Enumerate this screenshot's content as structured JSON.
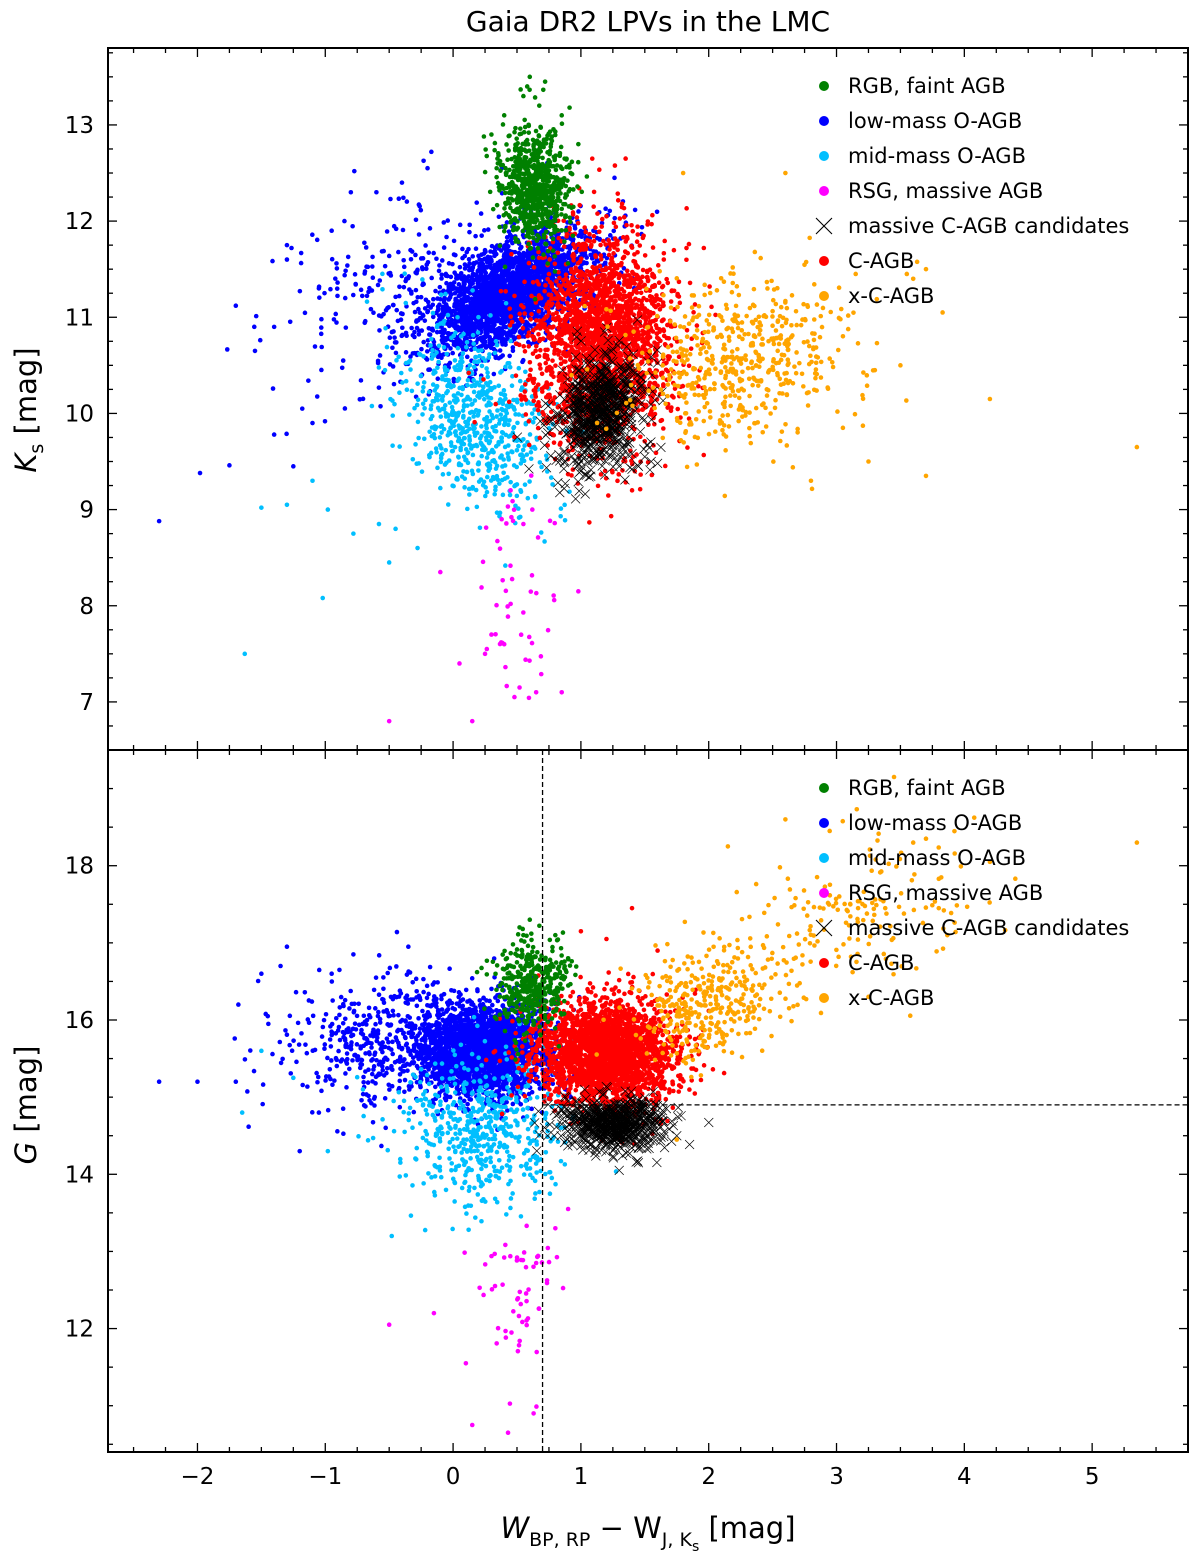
{
  "chart_data": {
    "type": "scatter",
    "title": "Gaia DR2 LPVs in the LMC",
    "xlabel": {
      "main": "W",
      "sub1": "BP, RP",
      "op": " − W",
      "sub2": "J, K",
      "sub2_sub": "s",
      "unit": " [mag]"
    },
    "xlim": [
      -2.7,
      5.75
    ],
    "x_ticks": [
      -2,
      -1,
      0,
      1,
      2,
      3,
      4,
      5
    ],
    "x_tick_labels": [
      "−2",
      "−1",
      "0",
      "1",
      "2",
      "3",
      "4",
      "5"
    ],
    "legend_position": "top-right",
    "legend_entries": [
      {
        "label": "RGB, faint AGB",
        "color": "#008000",
        "marker": "dot"
      },
      {
        "label": "low-mass O-AGB",
        "color": "#0000ff",
        "marker": "dot"
      },
      {
        "label": "mid-mass O-AGB",
        "color": "#00bfff",
        "marker": "dot"
      },
      {
        "label": "RSG, massive AGB",
        "color": "#ff00ff",
        "marker": "dot"
      },
      {
        "label": "massive C-AGB candidates",
        "color": "#000000",
        "marker": "x"
      },
      {
        "label": "C-AGB",
        "color": "#ff0000",
        "marker": "dot"
      },
      {
        "label": "x-C-AGB",
        "color": "#ffa500",
        "marker": "dot"
      }
    ],
    "panels": [
      {
        "ylabel": {
          "main": "K",
          "sub": "s",
          "unit": " [mag]"
        },
        "ylim": [
          13.8,
          6.5
        ],
        "y_inverted": true,
        "y_ticks": [
          7,
          8,
          9,
          10,
          11,
          12,
          13
        ],
        "y_tick_labels": [
          "7",
          "8",
          "9",
          "10",
          "11",
          "12",
          "13"
        ],
        "series": [
          {
            "name": "low-mass O-AGB",
            "color": "#0000ff",
            "marker": "dot",
            "clusters": [
              {
                "n": 2600,
                "cx": 0.45,
                "cy": 11.25,
                "sx": 0.32,
                "sy": 0.32,
                "corr": 0.55
              },
              {
                "n": 220,
                "cx": -0.45,
                "cy": 11.3,
                "sx": 0.45,
                "sy": 0.5,
                "corr": 0.2
              }
            ],
            "points": [
              [
                -2.3,
                8.88
              ],
              [
                -1.98,
                9.38
              ],
              [
                -1.75,
                9.46
              ],
              [
                -1.7,
                11.12
              ],
              [
                -1.4,
                9.78
              ],
              [
                -1.25,
                9.45
              ],
              [
                -1.18,
                10.05
              ],
              [
                -1.1,
                9.9
              ],
              [
                -1.55,
                10.65
              ],
              [
                -1.4,
                10.9
              ],
              [
                -1.3,
                11.6
              ],
              [
                -1.3,
                11.75
              ],
              [
                -1.05,
                11.3
              ],
              [
                -0.95,
                11.9
              ],
              [
                -0.85,
                12.0
              ],
              [
                -0.8,
                12.3
              ],
              [
                -0.6,
                12.3
              ],
              [
                -0.4,
                12.4
              ],
              [
                -0.2,
                12.55
              ],
              [
                -0.17,
                12.72
              ]
            ]
          },
          {
            "name": "mid-mass O-AGB",
            "color": "#00bfff",
            "marker": "dot",
            "clusters": [
              {
                "n": 650,
                "cx": 0.15,
                "cy": 9.95,
                "sx": 0.28,
                "sy": 0.5,
                "corr": -0.35
              }
            ],
            "points": [
              [
                -1.63,
                7.5
              ],
              [
                -1.02,
                8.08
              ],
              [
                -1.5,
                9.02
              ],
              [
                -1.3,
                9.05
              ],
              [
                -1.1,
                9.3
              ],
              [
                -0.98,
                9.0
              ],
              [
                -0.78,
                8.75
              ],
              [
                -0.58,
                8.85
              ],
              [
                -0.5,
                8.45
              ],
              [
                -0.45,
                8.8
              ]
            ]
          },
          {
            "name": "RSG, massive AGB",
            "color": "#ff00ff",
            "marker": "dot",
            "clusters": [
              {
                "n": 45,
                "cx": 0.5,
                "cy": 8.3,
                "sx": 0.14,
                "sy": 0.6,
                "corr": 0.0
              }
            ],
            "points": [
              [
                -0.5,
                6.8
              ],
              [
                0.15,
                6.8
              ],
              [
                0.05,
                7.4
              ],
              [
                0.48,
                7.05
              ],
              [
                0.52,
                7.15
              ],
              [
                0.65,
                7.1
              ],
              [
                0.85,
                7.1
              ],
              [
                0.98,
                8.15
              ],
              [
                0.4,
                7.6
              ],
              [
                0.25,
                7.5
              ],
              [
                0.3,
                7.7
              ],
              [
                0.38,
                8.9
              ],
              [
                0.45,
                9.2
              ],
              [
                0.55,
                8.85
              ],
              [
                -0.1,
                8.35
              ],
              [
                0.62,
                9.0
              ]
            ]
          },
          {
            "name": "C-AGB",
            "color": "#ff0000",
            "marker": "dot",
            "clusters": [
              {
                "n": 2300,
                "cx": 1.15,
                "cy": 10.75,
                "sx": 0.28,
                "sy": 0.55,
                "corr": 0.0
              }
            ],
            "points": [
              [
                1.35,
                12.65
              ],
              [
                1.2,
                12.05
              ],
              [
                1.1,
                12.15
              ],
              [
                1.05,
                11.8
              ],
              [
                0.8,
                12.2
              ]
            ]
          },
          {
            "name": "massive C-AGB candidates",
            "color": "#000000",
            "marker": "x",
            "clusters": [
              {
                "n": 700,
                "cx": 1.15,
                "cy": 10.0,
                "sx": 0.17,
                "sy": 0.3,
                "corr": 0.2
              }
            ],
            "points": [
              [
                1.45,
                9.45
              ],
              [
                1.55,
                9.5
              ],
              [
                1.4,
                9.42
              ],
              [
                1.6,
                9.48
              ],
              [
                1.3,
                9.45
              ],
              [
                1.0,
                9.5
              ],
              [
                1.5,
                9.55
              ]
            ]
          },
          {
            "name": "x-C-AGB",
            "color": "#ffa500",
            "marker": "dot",
            "clusters": [
              {
                "n": 550,
                "cx": 2.25,
                "cy": 10.55,
                "sx": 0.45,
                "sy": 0.45,
                "corr": 0.15
              }
            ],
            "points": [
              [
                2.8,
                9.3
              ],
              [
                3.05,
                9.85
              ],
              [
                3.25,
                9.5
              ],
              [
                3.5,
                10.5
              ],
              [
                3.7,
                9.35
              ],
              [
                3.83,
                11.05
              ],
              [
                4.2,
                10.15
              ],
              [
                5.35,
                9.65
              ],
              [
                3.6,
                11.4
              ],
              [
                3.7,
                11.5
              ],
              [
                3.55,
                11.45
              ],
              [
                1.8,
                12.5
              ],
              [
                2.6,
                12.5
              ],
              [
                3.15,
                11.45
              ],
              [
                3.3,
                10.45
              ]
            ]
          },
          {
            "name": "RGB, faint AGB",
            "color": "#008000",
            "marker": "dot",
            "clusters": [
              {
                "n": 750,
                "cx": 0.63,
                "cy": 12.35,
                "sx": 0.13,
                "sy": 0.3,
                "corr": 0.0
              }
            ],
            "points": [
              [
                0.58,
                13.4
              ],
              [
                0.6,
                13.5
              ],
              [
                0.72,
                13.45
              ],
              [
                0.55,
                13.3
              ],
              [
                0.85,
                13.1
              ],
              [
                0.3,
                12.9
              ],
              [
                0.98,
                12.8
              ],
              [
                0.92,
                12.5
              ],
              [
                0.35,
                12.6
              ],
              [
                0.4,
                13.1
              ]
            ]
          }
        ]
      },
      {
        "ylabel": {
          "main": "G",
          "sub": "",
          "unit": " [mag]"
        },
        "ylim": [
          19.5,
          10.4
        ],
        "y_inverted": true,
        "y_ticks": [
          12,
          14,
          16,
          18
        ],
        "y_tick_labels": [
          "12",
          "14",
          "16",
          "18"
        ],
        "reference_lines": [
          {
            "orientation": "vertical",
            "x": 0.7,
            "style": "dashed"
          },
          {
            "orientation": "horizontal",
            "y": 14.9,
            "x_from": 0.7,
            "style": "dashed"
          }
        ],
        "series": [
          {
            "name": "low-mass O-AGB",
            "color": "#0000ff",
            "marker": "dot",
            "clusters": [
              {
                "n": 2400,
                "cx": 0.25,
                "cy": 15.6,
                "sx": 0.27,
                "sy": 0.3,
                "corr": 0.0
              },
              {
                "n": 450,
                "cx": -0.55,
                "cy": 15.75,
                "sx": 0.4,
                "sy": 0.42,
                "corr": 0.1
              }
            ],
            "points": [
              [
                -2.3,
                15.2
              ],
              [
                -2.0,
                15.2
              ],
              [
                -1.7,
                15.2
              ],
              [
                -1.68,
                16.2
              ],
              [
                -1.45,
                16.05
              ],
              [
                -1.3,
                16.95
              ],
              [
                -1.2,
                14.3
              ],
              [
                -1.05,
                14.8
              ],
              [
                -0.95,
                16.6
              ],
              [
                -0.78,
                16.85
              ],
              [
                -0.35,
                16.95
              ],
              [
                -1.5,
                16.6
              ],
              [
                -1.35,
                16.7
              ]
            ]
          },
          {
            "name": "mid-mass O-AGB",
            "color": "#00bfff",
            "marker": "dot",
            "clusters": [
              {
                "n": 550,
                "cx": 0.22,
                "cy": 14.6,
                "sx": 0.3,
                "sy": 0.5,
                "corr": 0.0
              }
            ],
            "points": [
              [
                -1.65,
                14.8
              ],
              [
                -1.5,
                15.6
              ],
              [
                -1.25,
                15.25
              ],
              [
                -0.98,
                14.3
              ],
              [
                -0.48,
                13.2
              ]
            ]
          },
          {
            "name": "RSG, massive AGB",
            "color": "#ff00ff",
            "marker": "dot",
            "clusters": [
              {
                "n": 55,
                "cx": 0.5,
                "cy": 12.4,
                "sx": 0.15,
                "sy": 0.55,
                "corr": 0.0
              }
            ],
            "points": [
              [
                0.15,
                10.75
              ],
              [
                0.43,
                10.65
              ],
              [
                0.63,
                10.9
              ],
              [
                0.1,
                11.55
              ],
              [
                -0.5,
                12.05
              ],
              [
                -0.15,
                12.2
              ],
              [
                0.9,
                13.55
              ],
              [
                0.8,
                13.3
              ],
              [
                0.65,
                12.85
              ]
            ]
          },
          {
            "name": "C-AGB",
            "color": "#ff0000",
            "marker": "dot",
            "clusters": [
              {
                "n": 2500,
                "cx": 1.2,
                "cy": 15.55,
                "sx": 0.27,
                "sy": 0.34,
                "corr": 0.0
              }
            ],
            "points": [
              [
                1.4,
                17.45
              ],
              [
                1.2,
                17.05
              ],
              [
                1.6,
                16.9
              ],
              [
                1.0,
                17.15
              ]
            ]
          },
          {
            "name": "massive C-AGB candidates",
            "color": "#000000",
            "marker": "x",
            "clusters": [
              {
                "n": 650,
                "cx": 1.25,
                "cy": 14.65,
                "sx": 0.2,
                "sy": 0.17,
                "corr": 0.0
              }
            ],
            "points": [
              [
                1.3,
                14.05
              ],
              [
                1.45,
                14.15
              ],
              [
                1.65,
                14.55
              ],
              [
                1.75,
                14.5
              ],
              [
                1.55,
                14.7
              ],
              [
                0.85,
                14.65
              ]
            ]
          },
          {
            "name": "x-C-AGB",
            "color": "#ffa500",
            "marker": "dot",
            "clusters": [
              {
                "n": 350,
                "cx": 2.0,
                "cy": 16.25,
                "sx": 0.3,
                "sy": 0.38,
                "corr": 0.25
              },
              {
                "n": 160,
                "cx": 3.1,
                "cy": 17.4,
                "sx": 0.5,
                "sy": 0.55,
                "corr": 0.4
              }
            ],
            "points": [
              [
                1.75,
                14.45
              ],
              [
                3.25,
                16.3
              ],
              [
                3.45,
                19.15
              ],
              [
                4.2,
                18.05
              ],
              [
                5.35,
                18.3
              ],
              [
                3.8,
                17.45
              ],
              [
                2.15,
                18.25
              ],
              [
                2.6,
                18.6
              ],
              [
                3.7,
                18.35
              ],
              [
                3.6,
                18.3
              ]
            ]
          },
          {
            "name": "RGB, faint AGB",
            "color": "#008000",
            "marker": "dot",
            "clusters": [
              {
                "n": 400,
                "cx": 0.62,
                "cy": 16.45,
                "sx": 0.14,
                "sy": 0.3,
                "corr": 0.0
              }
            ],
            "points": [
              [
                0.52,
                17.2
              ],
              [
                0.6,
                17.3
              ],
              [
                0.8,
                17.1
              ],
              [
                0.9,
                16.8
              ],
              [
                0.55,
                17.1
              ]
            ]
          }
        ]
      }
    ]
  }
}
